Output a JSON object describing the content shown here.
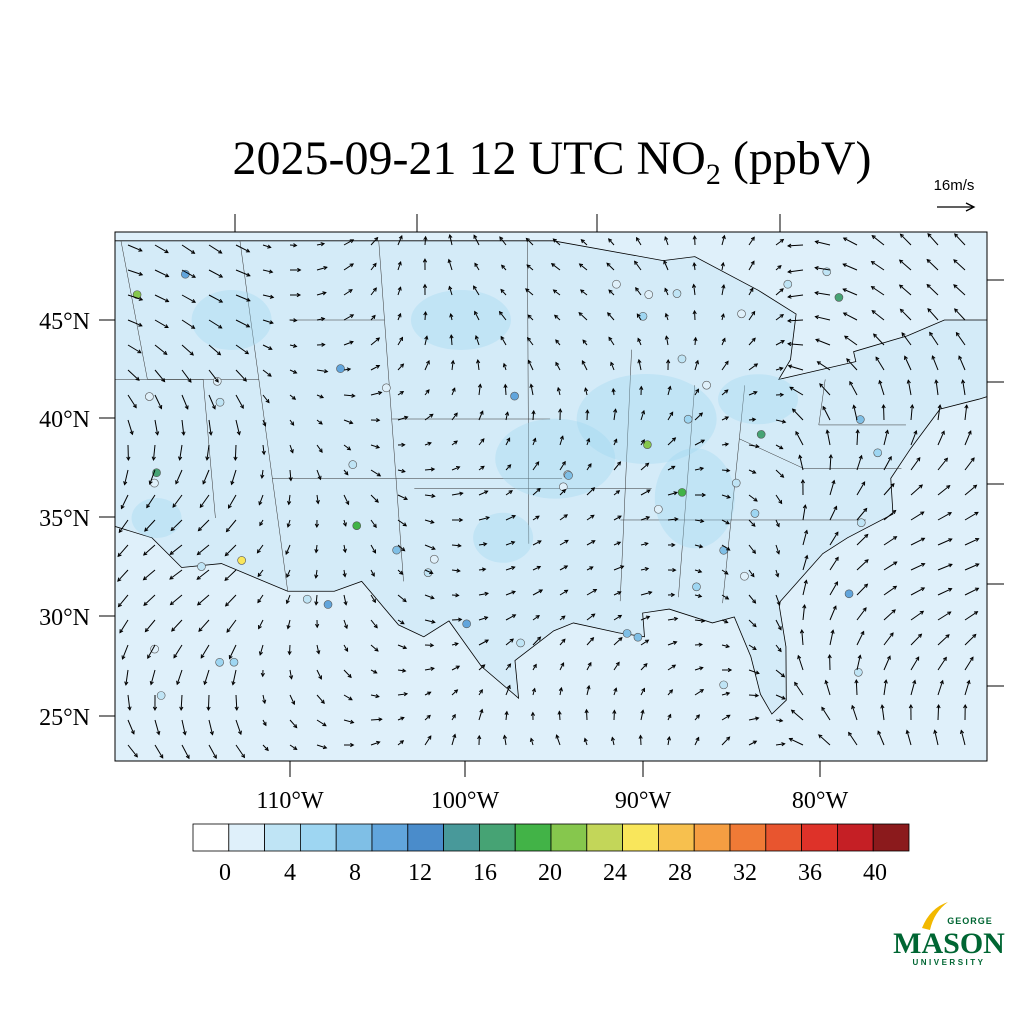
{
  "title": {
    "text": "2025-09-21 12 UTC NO",
    "subscript": "2",
    "suffix": " (ppbV)"
  },
  "wind_scale": "16m/s",
  "lat_labels": [
    "45°N",
    "40°N",
    "35°N",
    "30°N",
    "25°N"
  ],
  "lon_labels": [
    "110°W",
    "100°W",
    "90°W",
    "80°W"
  ],
  "colorbar": {
    "colors": [
      "#ffffff",
      "#dff0fa",
      "#bfe4f5",
      "#9ed6f2",
      "#7fbfe6",
      "#61a5dc",
      "#4a8ccb",
      "#48999a",
      "#46a374",
      "#42b347",
      "#86c74d",
      "#c3d659",
      "#f9e65b",
      "#f7c04e",
      "#f59e42",
      "#f07a36",
      "#e8552f",
      "#de3229",
      "#c51f25",
      "#8b1a1c"
    ],
    "ticks": [
      0,
      4,
      8,
      12,
      16,
      20,
      24,
      28,
      32,
      36,
      40
    ]
  },
  "logo": {
    "top": "GEORGE",
    "main": "MASON",
    "bottom": "UNIVERSITY"
  }
}
